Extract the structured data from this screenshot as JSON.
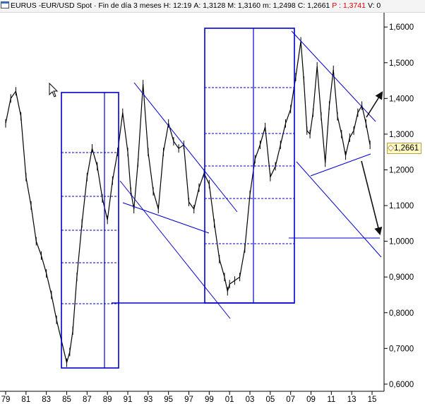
{
  "header": {
    "symbol": "EURUS",
    "title": "EUR/USD Spot · Fin de día 3 meses",
    "high": "H: 12:19",
    "open": "A: 1,3128",
    "max": "M: 1,3160",
    "min": "m: 1,2498",
    "close": "C: 1,2661",
    "percent": "P : 1,3741",
    "volume": "V: 0",
    "icon": "window-icon",
    "accent_color": "#e30000"
  },
  "last_price_label": "1,2661",
  "colors": {
    "line": "#0000d0",
    "price": "#000000",
    "background": "#ffffff"
  },
  "chart_data": {
    "type": "line",
    "title": "",
    "xlabel": "",
    "ylabel": "",
    "ylim": [
      0.58,
      1.64
    ],
    "xlim": [
      1979.0,
      2015.9
    ],
    "x_ticks": [
      "79",
      "81",
      "83",
      "85",
      "87",
      "89",
      "91",
      "93",
      "95",
      "97",
      "99",
      "01",
      "03",
      "05",
      "07",
      "09",
      "11",
      "13",
      "15"
    ],
    "y_ticks": [
      "0,6000",
      "0,7000",
      "0,8000",
      "0,9000",
      "1,0000",
      "1,1000",
      "1,2000",
      "1,3000",
      "1,4000",
      "1,5000",
      "1,6000"
    ],
    "grid": false,
    "legend": "none",
    "series": [
      {
        "x": [
          1979.0,
          1979.5,
          1980.0,
          1980.5,
          1981.0,
          1981.5,
          1982.0,
          1982.5,
          1983.0,
          1983.5,
          1984.0,
          1984.5,
          1985.0,
          1985.3,
          1985.6,
          1986.0,
          1986.5,
          1987.0,
          1987.5,
          1988.0,
          1988.5,
          1989.0,
          1989.5,
          1990.0,
          1990.5,
          1991.0,
          1991.3,
          1991.6,
          1992.0,
          1992.5,
          1993.0,
          1993.5,
          1994.0,
          1994.5,
          1995.0,
          1995.5,
          1996.0,
          1996.5,
          1997.0,
          1997.5,
          1998.0,
          1998.5,
          1999.0,
          1999.5,
          2000.0,
          2000.5,
          2000.8,
          2001.0,
          2001.5,
          2002.0,
          2002.5,
          2003.0,
          2003.5,
          2004.0,
          2004.5,
          2005.0,
          2005.5,
          2006.0,
          2006.5,
          2007.0,
          2007.5,
          2008.0,
          2008.3,
          2008.6,
          2008.9,
          2009.2,
          2009.6,
          2010.0,
          2010.4,
          2010.8,
          2011.2,
          2011.6,
          2012.0,
          2012.4,
          2012.8,
          2013.2,
          2013.6,
          2014.0,
          2014.4,
          2014.8
        ],
        "y": [
          1.33,
          1.4,
          1.42,
          1.35,
          1.18,
          1.1,
          1.0,
          0.96,
          0.91,
          0.85,
          0.78,
          0.72,
          0.66,
          0.69,
          0.75,
          0.9,
          1.05,
          1.18,
          1.26,
          1.21,
          1.12,
          1.06,
          1.17,
          1.25,
          1.36,
          1.25,
          1.14,
          1.09,
          1.22,
          1.44,
          1.25,
          1.14,
          1.09,
          1.25,
          1.33,
          1.28,
          1.26,
          1.27,
          1.11,
          1.09,
          1.15,
          1.19,
          1.16,
          1.05,
          0.95,
          0.9,
          0.86,
          0.88,
          0.89,
          0.9,
          0.98,
          1.13,
          1.23,
          1.27,
          1.32,
          1.18,
          1.21,
          1.27,
          1.33,
          1.37,
          1.46,
          1.56,
          1.45,
          1.31,
          1.3,
          1.36,
          1.49,
          1.35,
          1.22,
          1.38,
          1.48,
          1.35,
          1.3,
          1.24,
          1.29,
          1.31,
          1.36,
          1.38,
          1.33,
          1.27
        ]
      }
    ],
    "annotations": {
      "levels": [
        "0,6000",
        "0,7000",
        "0,8000",
        "0,9000",
        "1,0000",
        "1,1000",
        "1,2000",
        "1,3000",
        "1,4000",
        "1,5000",
        "1,6000"
      ]
    }
  }
}
